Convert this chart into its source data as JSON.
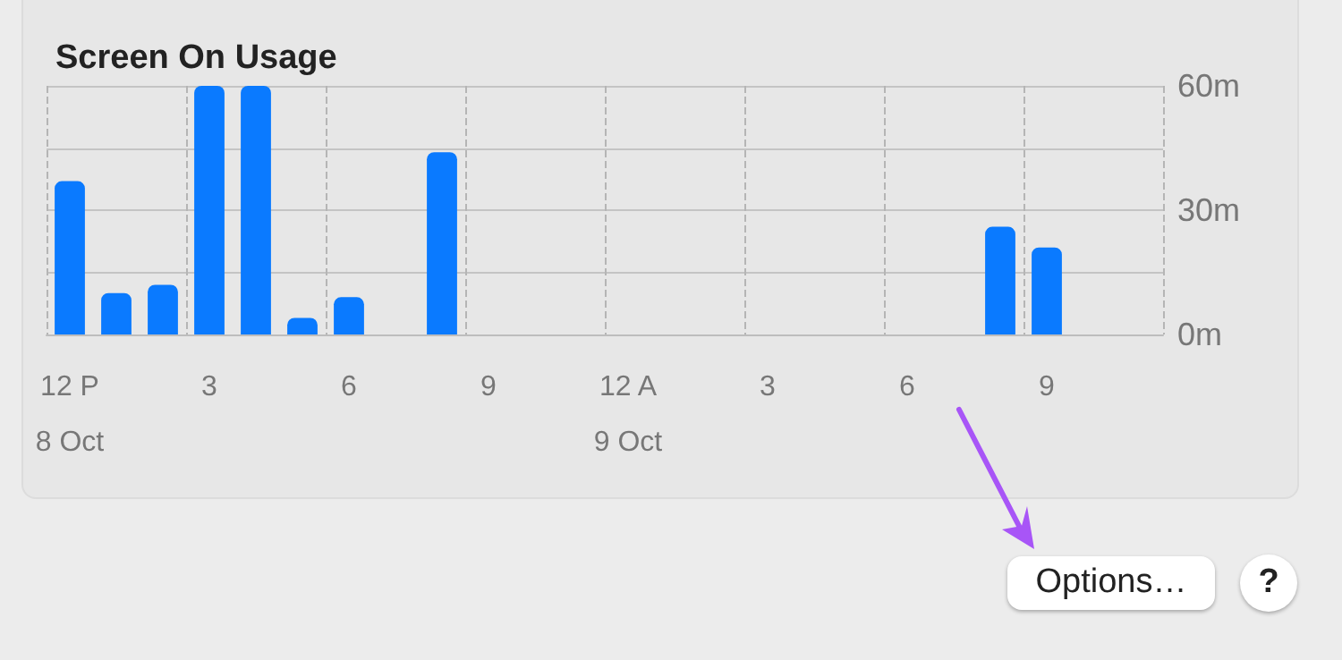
{
  "chart_data": {
    "type": "bar",
    "title": "Screen On Usage",
    "categories": [
      "12 P\n8 Oct",
      null,
      null,
      "3",
      null,
      null,
      "6",
      null,
      null,
      "9",
      null,
      null,
      "12 A\n9 Oct",
      null,
      null,
      "3",
      null,
      null,
      "6",
      null,
      null,
      "9",
      null,
      null
    ],
    "values": [
      37,
      10,
      12,
      60,
      60,
      4,
      9,
      0,
      44,
      0,
      0,
      0,
      0,
      0,
      0,
      0,
      0,
      0,
      0,
      0,
      26,
      21,
      0,
      0
    ],
    "color": "#0a7aff",
    "ylim": [
      0,
      60
    ],
    "yticks": [
      {
        "value": 0,
        "label": "0m"
      },
      {
        "value": 15,
        "label": null
      },
      {
        "value": 30,
        "label": "30m"
      },
      {
        "value": 45,
        "label": null
      },
      {
        "value": 60,
        "label": "60m"
      }
    ],
    "grid": true,
    "annotations": [
      "Options…",
      "?"
    ]
  }
}
